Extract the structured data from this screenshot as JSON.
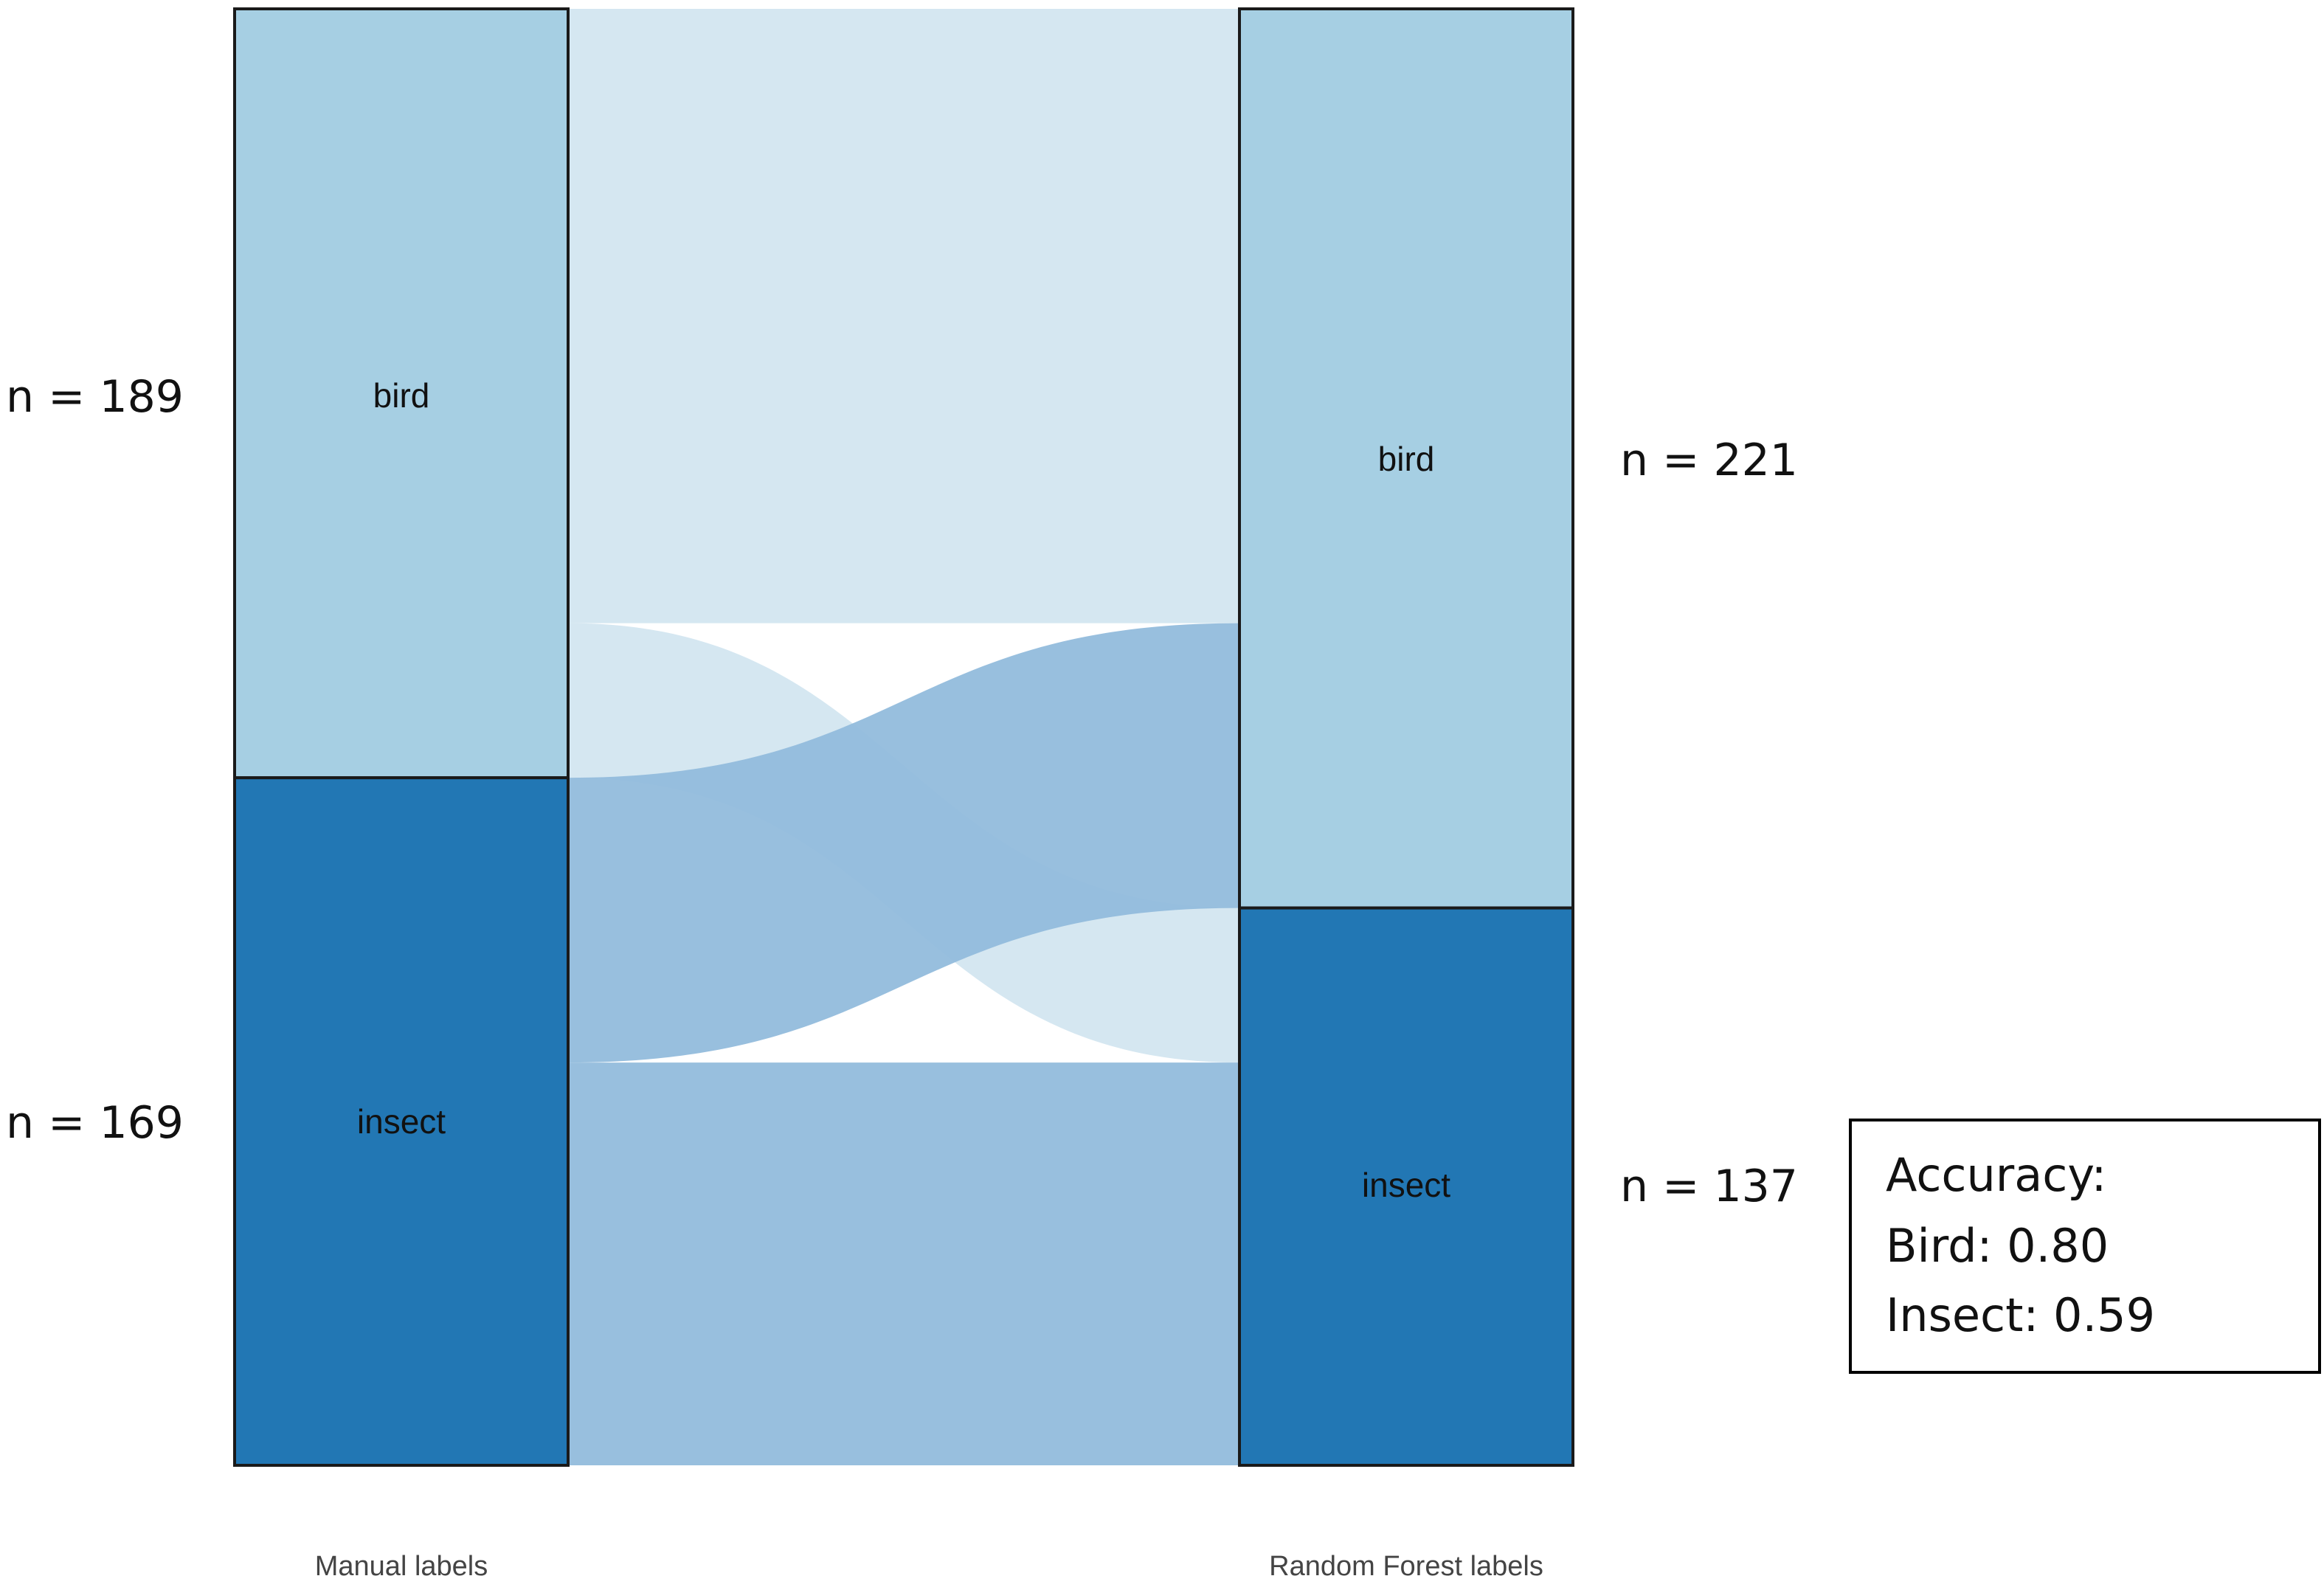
{
  "chart_data": {
    "type": "sankey",
    "columns": [
      {
        "axis_label": "Manual labels",
        "nodes": [
          {
            "label": "bird",
            "count_text": "n = 189",
            "value": 189,
            "color": "#a6cfe3"
          },
          {
            "label": "insect",
            "count_text": "n = 169",
            "value": 169,
            "color": "#2277b4"
          }
        ]
      },
      {
        "axis_label": "Random Forest labels",
        "nodes": [
          {
            "label": "bird",
            "count_text": "n = 221",
            "value": 221,
            "color": "#a6cfe3"
          },
          {
            "label": "insect",
            "count_text": "n = 137",
            "value": 137,
            "color": "#2277b4"
          }
        ]
      }
    ],
    "flows": [
      {
        "from": "bird",
        "to": "bird",
        "value": 151,
        "color": "#d3e6f0"
      },
      {
        "from": "bird",
        "to": "insect",
        "value": 38,
        "color": "#d3e6f0"
      },
      {
        "from": "insect",
        "to": "bird",
        "value": 70,
        "color": "#92bcdc"
      },
      {
        "from": "insect",
        "to": "insect",
        "value": 99,
        "color": "#92bcdc"
      }
    ],
    "annotation": {
      "title": "Accuracy:",
      "lines": [
        "Bird: 0.80",
        "Insect: 0.59"
      ]
    }
  }
}
